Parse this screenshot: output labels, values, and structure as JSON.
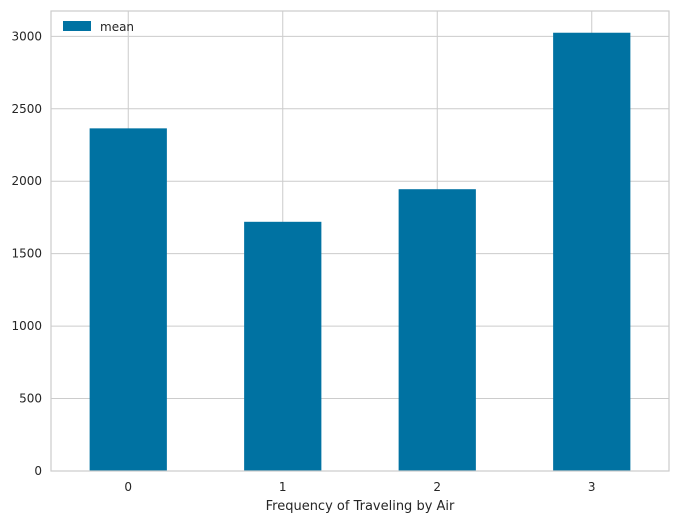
{
  "chart_data": {
    "type": "bar",
    "categories": [
      "0",
      "1",
      "2",
      "3"
    ],
    "series": [
      {
        "name": "mean",
        "values": [
          2365,
          1720,
          1945,
          3025
        ]
      }
    ],
    "xlabel": "Frequency of Traveling by Air",
    "ylabel": "",
    "ylim": [
      0,
      3175
    ],
    "yticks": [
      0,
      500,
      1000,
      1500,
      2000,
      2500,
      3000
    ],
    "grid": true,
    "legend_position": "top-left",
    "colors": {
      "bar": "#0072a2",
      "grid": "#cccccc",
      "axes_edge": "#cccccc",
      "text": "#262626"
    }
  }
}
